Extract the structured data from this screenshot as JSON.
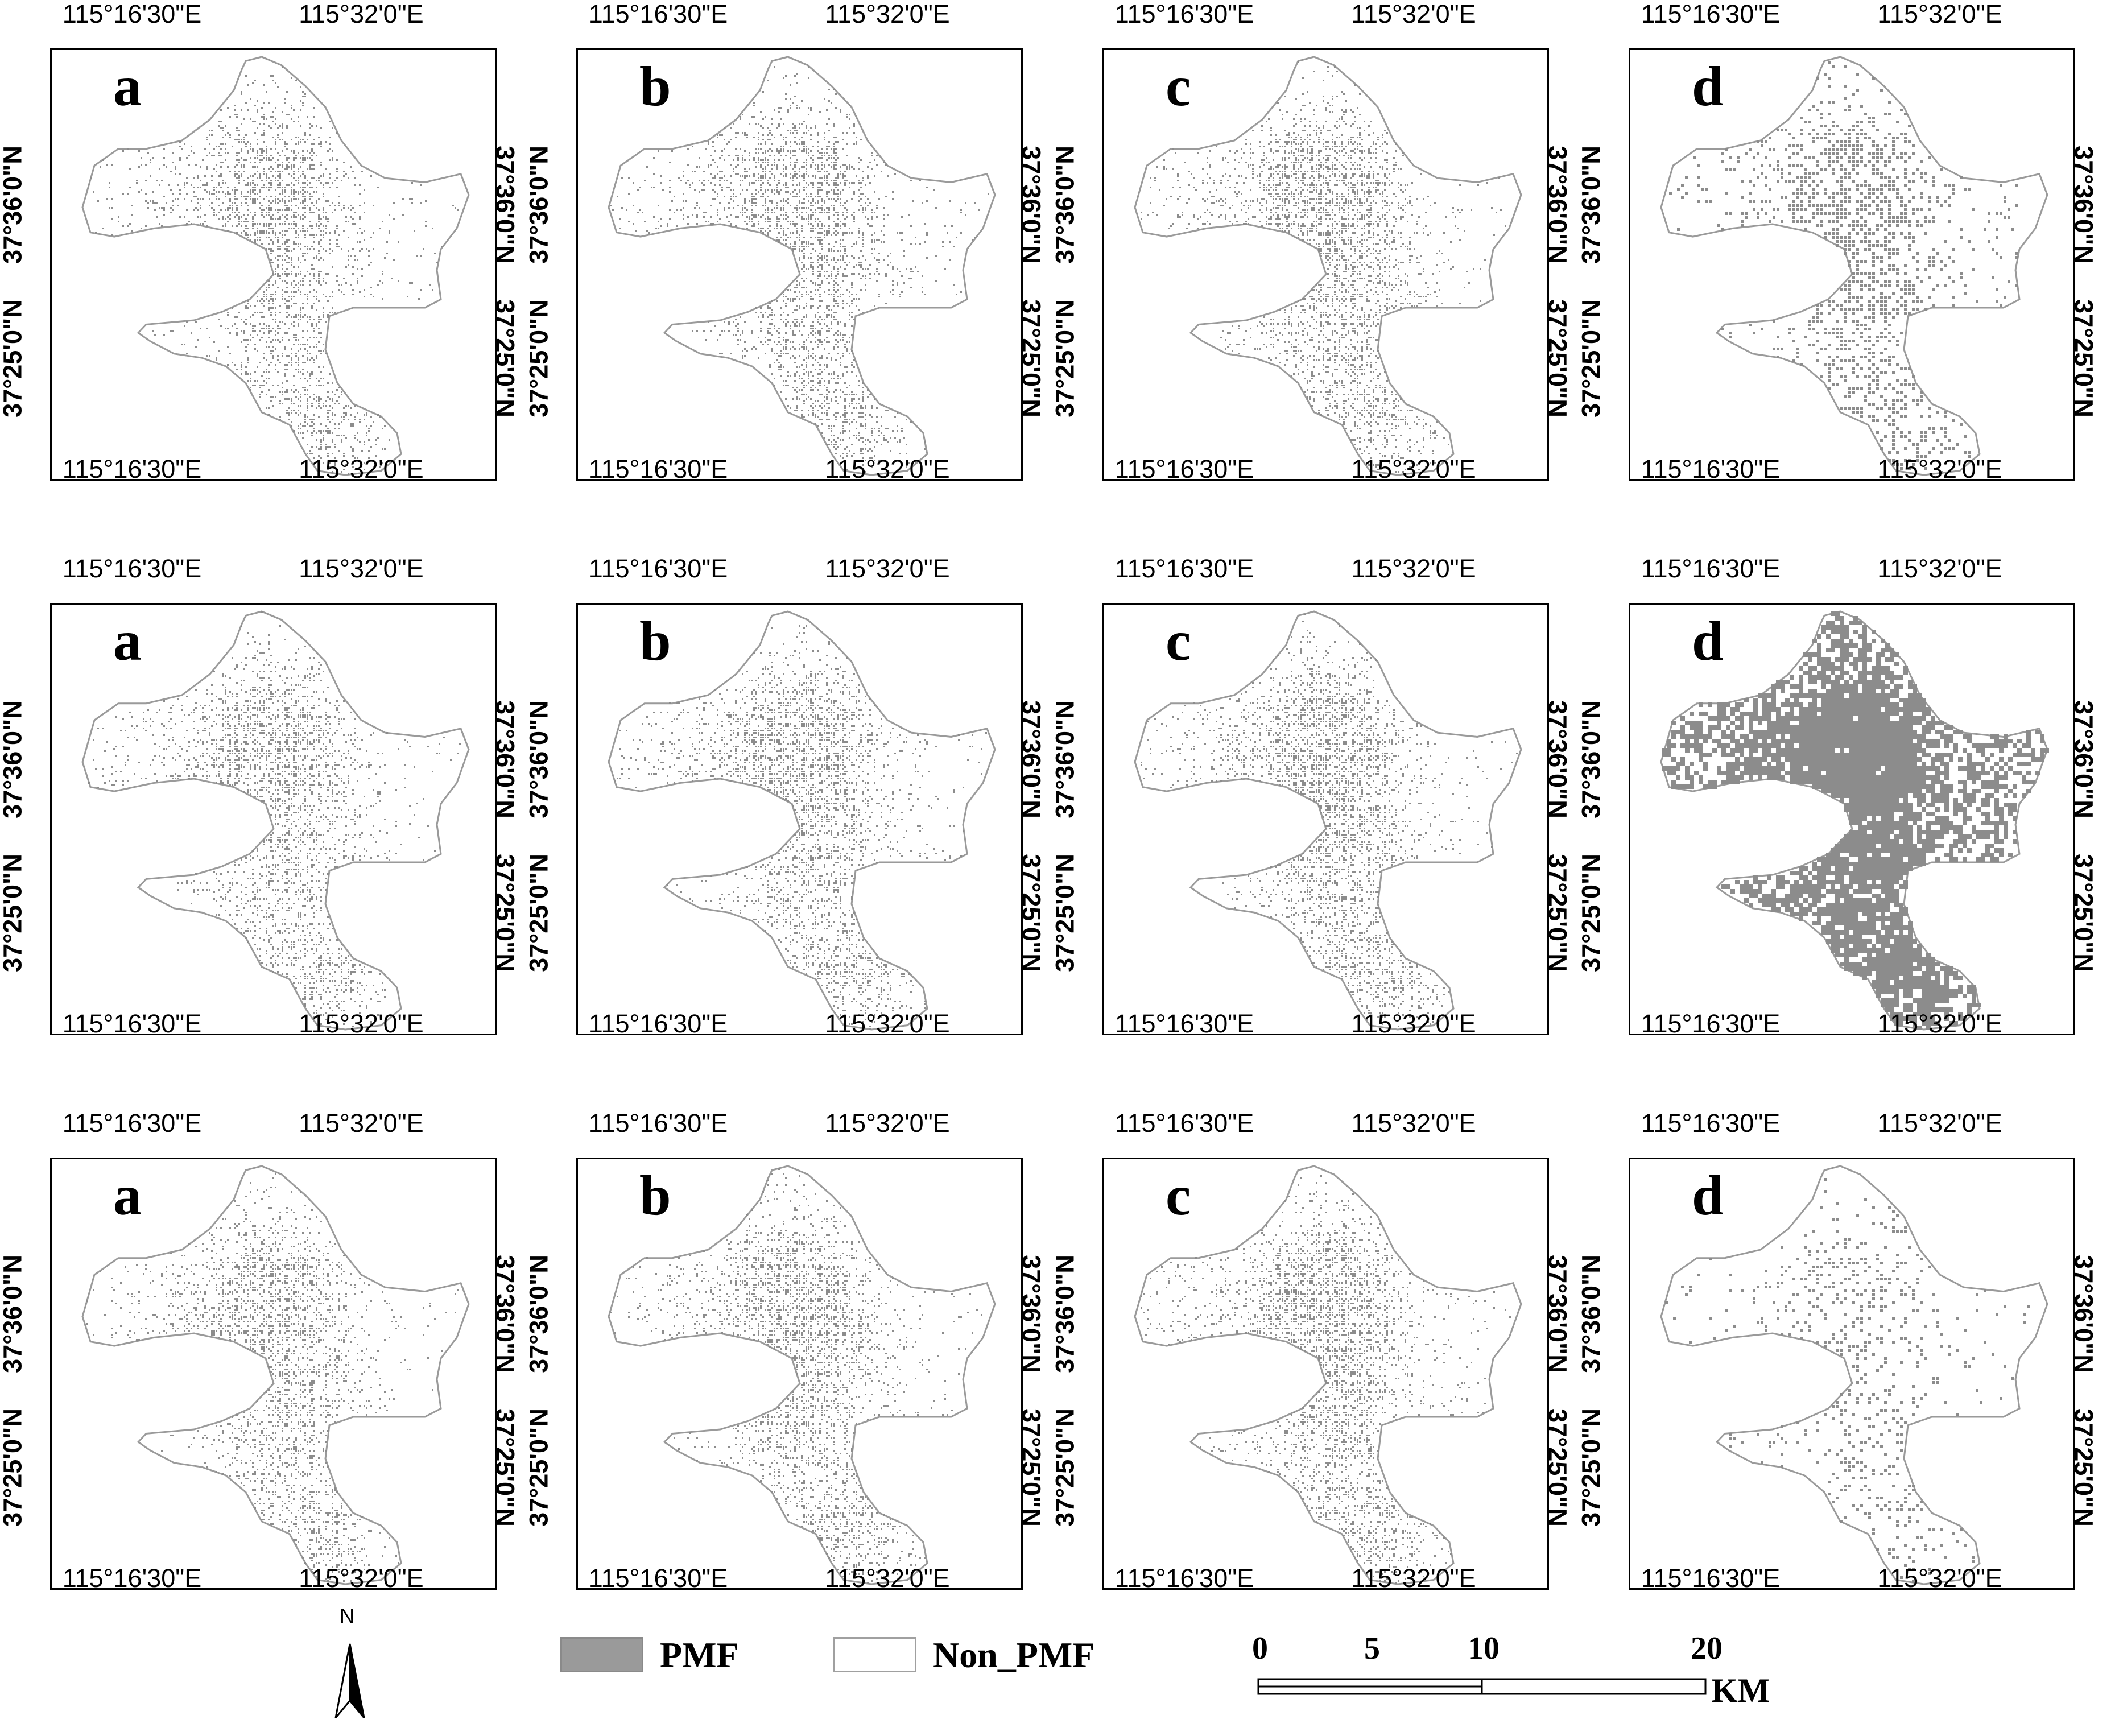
{
  "map": {
    "lon_labels": [
      "115°16'30\"E",
      "115°32'0\"E"
    ],
    "lat_labels": [
      "37°36'0\"N",
      "37°25'0\"N"
    ],
    "rows": [
      [
        {
          "letter": "a",
          "density": 0.3,
          "style": "speck"
        },
        {
          "letter": "b",
          "density": 0.33,
          "style": "speck"
        },
        {
          "letter": "c",
          "density": 0.36,
          "style": "speck"
        },
        {
          "letter": "d",
          "density": 0.45,
          "style": "dots"
        }
      ],
      [
        {
          "letter": "a",
          "density": 0.32,
          "style": "speck"
        },
        {
          "letter": "b",
          "density": 0.34,
          "style": "speck"
        },
        {
          "letter": "c",
          "density": 0.36,
          "style": "speck"
        },
        {
          "letter": "d",
          "density": 0.88,
          "style": "solid"
        }
      ],
      [
        {
          "letter": "a",
          "density": 0.31,
          "style": "speck"
        },
        {
          "letter": "b",
          "density": 0.33,
          "style": "speck"
        },
        {
          "letter": "c",
          "density": 0.35,
          "style": "speck"
        },
        {
          "letter": "d",
          "density": 0.22,
          "style": "dots"
        }
      ]
    ]
  },
  "legend": {
    "north_label": "N",
    "items": [
      {
        "label": "PMF",
        "color": "#9a9a9a"
      },
      {
        "label": "Non_PMF",
        "color": "#ffffff"
      }
    ],
    "scale_ticks": [
      "0",
      "5",
      "10",
      "20"
    ],
    "scale_unit": "KM"
  },
  "colors": {
    "pmf": "#8c8c8c",
    "boundary": "#9a9a9a"
  }
}
